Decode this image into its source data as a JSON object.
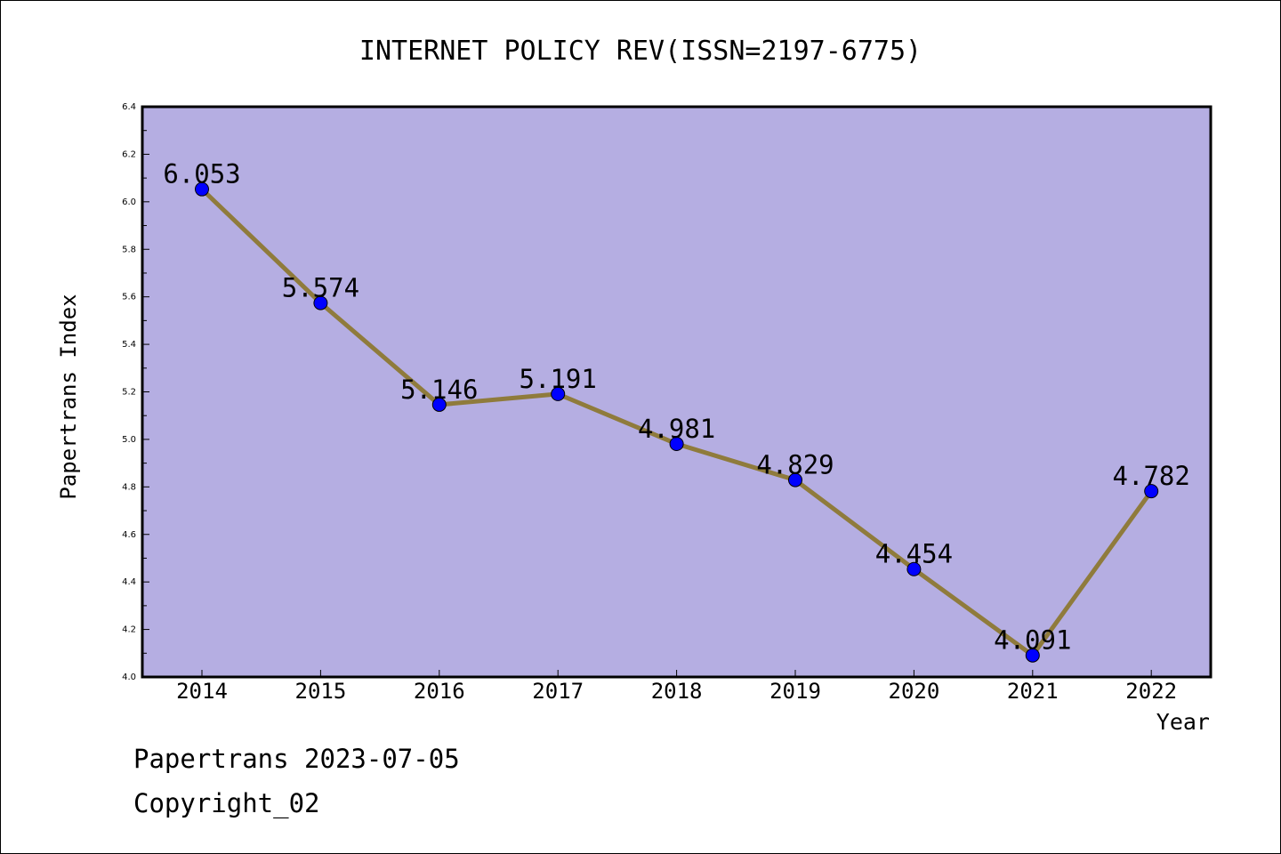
{
  "chart_data": {
    "type": "line",
    "title": "INTERNET POLICY REV(ISSN=2197-6775)",
    "xlabel": "Year",
    "ylabel": "Papertrans Index",
    "categories": [
      "2014",
      "2015",
      "2016",
      "2017",
      "2018",
      "2019",
      "2020",
      "2021",
      "2022"
    ],
    "values": [
      6.053,
      5.574,
      5.146,
      5.191,
      4.981,
      4.829,
      4.454,
      4.091,
      4.782
    ],
    "data_labels": [
      "6.053",
      "5.574",
      "5.146",
      "5.191",
      "4.981",
      "4.829",
      "4.454",
      "4.091",
      "4.782"
    ],
    "ylim": [
      4.0,
      6.4
    ],
    "yticks": [
      "4.0",
      "4.2",
      "4.4",
      "4.6",
      "4.8",
      "5.0",
      "5.2",
      "5.4",
      "5.6",
      "5.8",
      "6.0",
      "6.2",
      "6.4"
    ],
    "grid": false,
    "legend": "none",
    "colors": {
      "plot_background": "#b5aee2",
      "line": "#8f7b3c",
      "marker": "#0000ff",
      "axis": "#000000"
    }
  },
  "footer": {
    "line1": "Papertrans 2023-07-05",
    "line2": "Copyright_02"
  }
}
